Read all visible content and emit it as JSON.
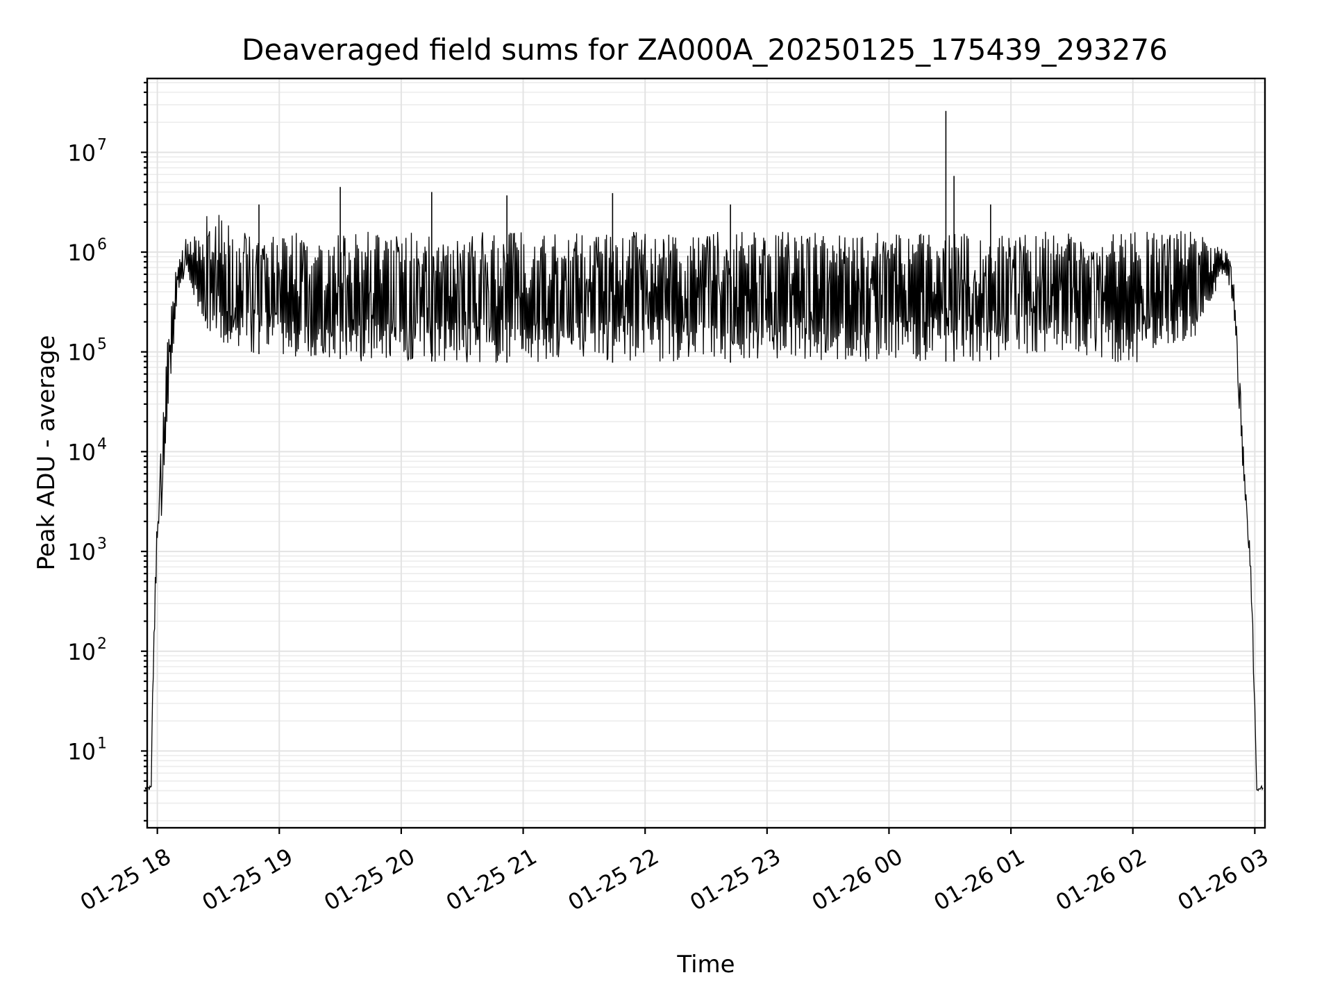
{
  "chart_data": {
    "type": "line",
    "title": "Deaveraged field sums for ZA000A_20250125_175439_293276",
    "xlabel": "Time",
    "ylabel": "Peak ADU - average",
    "y_scale": "log",
    "ylim": [
      1.7,
      55000000
    ],
    "xlim": [
      "2025-01-25 17:55",
      "2025-01-26 03:05"
    ],
    "grid": "major and minor",
    "x_ticks": [
      "01-25 18",
      "01-25 19",
      "01-25 20",
      "01-25 21",
      "01-25 22",
      "01-25 23",
      "01-26 00",
      "01-26 01",
      "01-26 02",
      "01-26 03"
    ],
    "y_ticks": [
      {
        "base": "10",
        "exp": "1",
        "value": 10
      },
      {
        "base": "10",
        "exp": "2",
        "value": 100
      },
      {
        "base": "10",
        "exp": "3",
        "value": 1000
      },
      {
        "base": "10",
        "exp": "4",
        "value": 10000
      },
      {
        "base": "10",
        "exp": "5",
        "value": 100000
      },
      {
        "base": "10",
        "exp": "6",
        "value": 1000000
      },
      {
        "base": "10",
        "exp": "7",
        "value": 10000000
      }
    ],
    "line_color": "#000000",
    "series": [
      {
        "x": [
          "2025-01-25 17:54",
          "2025-01-25 17:56",
          "2025-01-25 17:57",
          "2025-01-25 17:58",
          "2025-01-25 18:00",
          "2025-01-25 18:02",
          "2025-01-25 18:04",
          "2025-01-25 18:06",
          "2025-01-25 18:08",
          "2025-01-25 18:10",
          "2025-01-25 18:12",
          "2025-01-25 18:14",
          "2025-01-25 18:16",
          "2025-01-25 18:18",
          "2025-01-25 18:20",
          "2025-01-25 18:25",
          "2025-01-25 18:30",
          "2025-01-25 18:35",
          "2025-01-25 18:40",
          "2025-01-25 18:45",
          "2025-01-25 18:50",
          "2025-01-25 18:55",
          "2025-01-25 19:00",
          "2025-01-25 19:10",
          "2025-01-25 19:20",
          "2025-01-25 19:30",
          "2025-01-25 19:40",
          "2025-01-25 19:50",
          "2025-01-25 20:00",
          "2025-01-25 20:15",
          "2025-01-25 20:30",
          "2025-01-25 20:45",
          "2025-01-25 21:00",
          "2025-01-25 21:15",
          "2025-01-25 21:30",
          "2025-01-25 21:45",
          "2025-01-25 22:00",
          "2025-01-25 22:15",
          "2025-01-25 22:30",
          "2025-01-25 22:45",
          "2025-01-25 23:00",
          "2025-01-25 23:15",
          "2025-01-25 23:30",
          "2025-01-25 23:45",
          "2025-01-26 00:00",
          "2025-01-26 00:15",
          "2025-01-26 00:30",
          "2025-01-26 00:45",
          "2025-01-26 01:00",
          "2025-01-26 01:15",
          "2025-01-26 01:30",
          "2025-01-26 01:45",
          "2025-01-26 02:00",
          "2025-01-26 02:10",
          "2025-01-26 02:20",
          "2025-01-26 02:30",
          "2025-01-26 02:35",
          "2025-01-26 02:40",
          "2025-01-26 02:44",
          "2025-01-26 02:47",
          "2025-01-26 02:50",
          "2025-01-26 02:52",
          "2025-01-26 02:54",
          "2025-01-26 02:56",
          "2025-01-26 02:58",
          "2025-01-26 03:00",
          "2025-01-26 03:01",
          "2025-01-26 03:02",
          "2025-01-26 03:04"
        ],
        "envelope_low": [
          4,
          4,
          4,
          50,
          1200,
          1600,
          8000,
          40000,
          120000,
          300000,
          500000,
          600000,
          500000,
          300000,
          200000,
          150000,
          120000,
          110000,
          100000,
          100000,
          95000,
          90000,
          90000,
          90000,
          85000,
          85000,
          80000,
          80000,
          80000,
          80000,
          78000,
          78000,
          78000,
          78000,
          78000,
          78000,
          78000,
          78000,
          78000,
          78000,
          80000,
          80000,
          80000,
          80000,
          80000,
          80000,
          80000,
          80000,
          90000,
          100000,
          95000,
          80000,
          78000,
          80000,
          90000,
          120000,
          200000,
          350000,
          600000,
          500000,
          200000,
          30000,
          6000,
          1800,
          500,
          20,
          4,
          4,
          4
        ],
        "envelope_high": [
          4.5,
          4.5,
          4.5,
          200,
          2500,
          20000,
          80000,
          200000,
          500000,
          800000,
          1000000,
          1500000,
          1300000,
          1400000,
          1800000,
          2500000,
          3000000,
          2000000,
          1500000,
          1600000,
          1600000,
          1600000,
          1600000,
          1600000,
          1600000,
          1600000,
          1600000,
          1600000,
          1600000,
          1600000,
          1600000,
          1600000,
          1600000,
          1600000,
          1600000,
          1600000,
          1600000,
          1600000,
          1600000,
          1600000,
          1600000,
          1600000,
          1600000,
          1600000,
          1600000,
          1600000,
          1600000,
          1600000,
          1600000,
          1600000,
          1600000,
          1600000,
          1600000,
          1600000,
          1600000,
          1700000,
          1600000,
          1200000,
          1100000,
          1000000,
          500000,
          100000,
          15000,
          3000,
          1000,
          40,
          4.5,
          4.5,
          4.5
        ]
      }
    ],
    "spikes": [
      {
        "x": "2025-01-25 18:50",
        "y": 3000000
      },
      {
        "x": "2025-01-25 19:30",
        "y": 4500000
      },
      {
        "x": "2025-01-25 20:15",
        "y": 4000000
      },
      {
        "x": "2025-01-25 20:52",
        "y": 3700000
      },
      {
        "x": "2025-01-25 21:44",
        "y": 3900000
      },
      {
        "x": "2025-01-25 22:42",
        "y": 3000000
      },
      {
        "x": "2025-01-26 00:28",
        "y": 26000000
      },
      {
        "x": "2025-01-26 00:32",
        "y": 5800000
      },
      {
        "x": "2025-01-26 00:50",
        "y": 3000000
      }
    ]
  }
}
